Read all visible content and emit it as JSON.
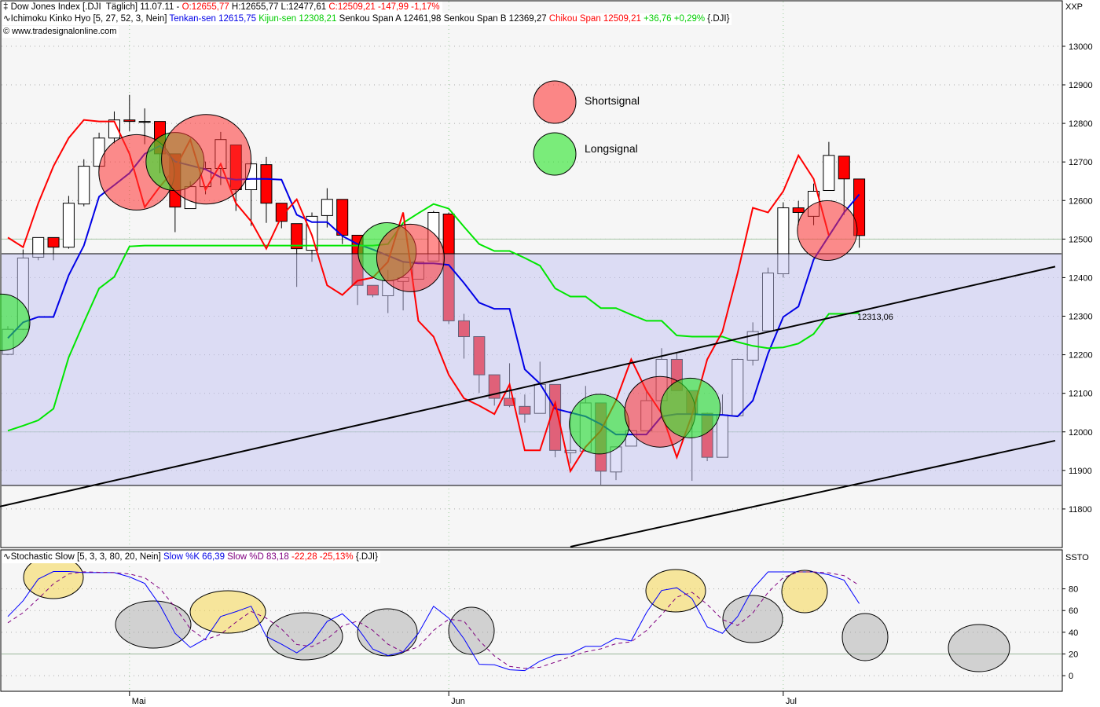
{
  "header": {
    "instrument": {
      "icon": "candlestick-icon",
      "title": "Dow Jones Index [.DJI  Täglich] 11.07.11 - ",
      "open": "O:12655,77",
      "hl": " H:12655,77 L:12477,61 ",
      "close": "C:12509,21 -147,99 -1,17%"
    },
    "ichimoku": {
      "icon": "indicator-wave-icon",
      "name": "Ichimoku Kinko Hyo [5, 27, 52, 3, Nein] ",
      "tenkan": "Tenkan-sen 12615,75 ",
      "kijun": "Kijun-sen 12308,21 ",
      "senkou": "Senkou Span A 12461,98 Senkou Span B 12369,27 ",
      "chikou": "Chikou Span 12509,21 ",
      "change": "+36,76 +0,29% ",
      "symbol": "{.DJI}"
    },
    "copyright": "© www.tradesignalonline.com"
  },
  "stoch_header": {
    "icon": "indicator-wave-icon",
    "name": "Stochastic Slow [5, 3, 3, 80, 20, Nein] ",
    "k": "Slow %K 66,39 ",
    "d": "Slow %D 83,18 ",
    "change": "-22,28 -25,13% ",
    "symbol": "{.DJI}"
  },
  "main_axis_label": "XXP",
  "stoch_axis_label": "SSTO",
  "legend": {
    "short": "Shortsignal",
    "long": "Longsignal"
  },
  "trendline_label": "12313,06",
  "colors": {
    "background": "#f6f6f6",
    "up_candle": "#ffffff",
    "down_candle": "#ff0000",
    "tenkan": "#0000e6",
    "kijun": "#00e600",
    "chikou": "#ff0000",
    "band": "#c1c1f1",
    "short_signal": "#ff4040",
    "long_signal": "#33dd33",
    "stoch_k": "#0000ff",
    "stoch_d": "#800080",
    "stoch_high": "#f5d750",
    "stoch_low": "#a0a0a0"
  },
  "chart_data": [
    {
      "type": "candlestick",
      "title": "Dow Jones Index [.DJI  Täglich]",
      "y_range": [
        11700,
        13118
      ],
      "y_ticks": [
        13000,
        12900,
        12800,
        12700,
        12600,
        12500,
        12400,
        12300,
        12200,
        12100,
        12000,
        11900,
        11800
      ],
      "x_ticks": [
        {
          "date": "2011-05-02",
          "label": "Mai"
        },
        {
          "date": "2011-06-01",
          "label": "Jun"
        },
        {
          "date": "2011-07-01",
          "label": "Jul"
        }
      ],
      "grid": true,
      "columns": [
        "date",
        "open",
        "high",
        "low",
        "close"
      ],
      "candles": [
        [
          "2011-04-19",
          12201,
          12274,
          12199,
          12266
        ],
        [
          "2011-04-20",
          12266,
          12473,
          12264,
          12451
        ],
        [
          "2011-04-21",
          12453,
          12504,
          12445,
          12504
        ],
        [
          "2011-04-25",
          12504,
          12504,
          12445,
          12479
        ],
        [
          "2011-04-26",
          12479,
          12612,
          12475,
          12593
        ],
        [
          "2011-04-27",
          12591,
          12707,
          12585,
          12689
        ],
        [
          "2011-04-28",
          12689,
          12776,
          12681,
          12762
        ],
        [
          "2011-04-29",
          12762,
          12831,
          12748,
          12809
        ],
        [
          "2011-05-02",
          12809,
          12874,
          12780,
          12805
        ],
        [
          "2011-05-03",
          12805,
          12839,
          12746,
          12805
        ],
        [
          "2011-05-04",
          12805,
          12805,
          12671,
          12721
        ],
        [
          "2011-05-05",
          12721,
          12721,
          12518,
          12583
        ],
        [
          "2011-05-06",
          12579,
          12650,
          12579,
          12636
        ],
        [
          "2011-05-09",
          12636,
          12701,
          12616,
          12683
        ],
        [
          "2011-05-10",
          12683,
          12778,
          12640,
          12758
        ],
        [
          "2011-05-11",
          12744,
          12744,
          12573,
          12628
        ],
        [
          "2011-05-12",
          12628,
          12700,
          12534,
          12695
        ],
        [
          "2011-05-13",
          12693,
          12713,
          12542,
          12593
        ],
        [
          "2011-05-16",
          12593,
          12593,
          12528,
          12546
        ],
        [
          "2011-05-17",
          12540,
          12540,
          12376,
          12475
        ],
        [
          "2011-05-18",
          12471,
          12569,
          12441,
          12559
        ],
        [
          "2011-05-19",
          12561,
          12632,
          12530,
          12603
        ],
        [
          "2011-05-20",
          12603,
          12603,
          12487,
          12510
        ],
        [
          "2011-05-23",
          12510,
          12510,
          12329,
          12380
        ],
        [
          "2011-05-24",
          12380,
          12380,
          12349,
          12355
        ],
        [
          "2011-05-25",
          12353,
          12420,
          12308,
          12392
        ],
        [
          "2011-05-26",
          12390,
          12441,
          12315,
          12400
        ],
        [
          "2011-05-27",
          12396,
          12441,
          12396,
          12441
        ],
        [
          "2011-05-31",
          12443,
          12573,
          12443,
          12569
        ],
        [
          "2011-06-01",
          12565,
          12569,
          12280,
          12288
        ],
        [
          "2011-06-02",
          12288,
          12306,
          12190,
          12247
        ],
        [
          "2011-06-03",
          12247,
          12247,
          12101,
          12148
        ],
        [
          "2011-06-06",
          12148,
          12148,
          12068,
          12087
        ],
        [
          "2011-06-07",
          12087,
          12178,
          12064,
          12068
        ],
        [
          "2011-06-08",
          12066,
          12097,
          12024,
          12046
        ],
        [
          "2011-06-09",
          12048,
          12182,
          12048,
          12123
        ],
        [
          "2011-06-10",
          12123,
          12123,
          11934,
          11952
        ],
        [
          "2011-06-13",
          11946,
          12054,
          11918,
          11952
        ],
        [
          "2011-06-14",
          11950,
          12119,
          11950,
          12075
        ],
        [
          "2011-06-15",
          12075,
          12075,
          11863,
          11898
        ],
        [
          "2011-06-16",
          11896,
          11961,
          11875,
          11961
        ],
        [
          "2011-06-17",
          11963,
          12003,
          11963,
          12003
        ],
        [
          "2011-06-20",
          12003,
          12105,
          12003,
          12081
        ],
        [
          "2011-06-21",
          12081,
          12217,
          12081,
          12188
        ],
        [
          "2011-06-22",
          12188,
          12203,
          12107,
          12107
        ],
        [
          "2011-06-23",
          12107,
          12107,
          11873,
          12048
        ],
        [
          "2011-06-24",
          12048,
          12050,
          11924,
          11934
        ],
        [
          "2011-06-27",
          11934,
          12097,
          11934,
          12044
        ],
        [
          "2011-06-28",
          12042,
          12190,
          12042,
          12188
        ],
        [
          "2011-06-29",
          12186,
          12284,
          12172,
          12260
        ],
        [
          "2011-06-30",
          12262,
          12426,
          12262,
          12412
        ],
        [
          "2011-07-01",
          12410,
          12595,
          12400,
          12581
        ],
        [
          "2011-07-05",
          12581,
          12599,
          12536,
          12569
        ],
        [
          "2011-07-06",
          12559,
          12644,
          12536,
          12624
        ],
        [
          "2011-07-07",
          12626,
          12752,
          12626,
          12717
        ],
        [
          "2011-07-08",
          12715,
          12715,
          12563,
          12656
        ],
        [
          "2011-07-11",
          12655.77,
          12655.77,
          12477.61,
          12509.21
        ]
      ],
      "series": [
        {
          "name": "Tenkan-sen",
          "color": "#0000e6",
          "values": [
            12243,
            12284,
            12298,
            12298,
            12406,
            12483,
            12610,
            12640,
            12671,
            12721,
            12742,
            12701,
            12691,
            12681,
            12660,
            12654,
            12656,
            12656,
            12654,
            12563,
            12544,
            12544,
            12508,
            12487,
            12473,
            12457,
            12441,
            12437,
            12437,
            12433,
            12386,
            12335,
            12319,
            12319,
            12162,
            12125,
            12060,
            12050,
            12040,
            12020,
            11993,
            11993,
            11993,
            12040,
            12046,
            12046,
            12044,
            12044,
            12040,
            12081,
            12203,
            12298,
            12325,
            12447,
            12508,
            12569,
            12615.75
          ]
        },
        {
          "name": "Kijun-sen",
          "color": "#00e600",
          "values": [
            12003,
            12016,
            12030,
            12060,
            12193,
            12284,
            12372,
            12402,
            12481,
            12483,
            12483,
            12483,
            12483,
            12483,
            12483,
            12483,
            12483,
            12483,
            12483,
            12483,
            12483,
            12483,
            12483,
            12483,
            12483,
            12487,
            12542,
            12567,
            12591,
            12579,
            12532,
            12487,
            12469,
            12469,
            12451,
            12431,
            12372,
            12351,
            12351,
            12321,
            12321,
            12304,
            12288,
            12288,
            12250,
            12247,
            12247,
            12247,
            12233,
            12223,
            12217,
            12219,
            12229,
            12254,
            12306,
            12306,
            12308.21
          ]
        },
        {
          "name": "Chikou Span",
          "color": "#ff0000",
          "values": [
            12504,
            12479,
            12593,
            12689,
            12762,
            12809,
            12805,
            12805,
            12721,
            12583,
            12636,
            12683,
            12758,
            12628,
            12695,
            12593,
            12546,
            12475,
            12559,
            12603,
            12510,
            12380,
            12355,
            12392,
            12400,
            12441,
            12569,
            12288,
            12247,
            12148,
            12087,
            12068,
            12046,
            12123,
            11952,
            11952,
            12075,
            11898,
            11961,
            12003,
            12081,
            12188,
            12107,
            12048,
            11934,
            12044,
            12188,
            12260,
            12412,
            12581,
            12569,
            12624,
            12717,
            12656,
            12509.21
          ]
        }
      ],
      "band": {
        "upper": 12461.98,
        "lower": 11861
      },
      "horizontal_lines": [
        12500,
        12000
      ],
      "trendlines": [
        {
          "from": [
            "2011-04-19",
            11811
          ],
          "to": [
            "2011-07-11",
            12313.06
          ]
        },
        {
          "from": [
            "2011-06-13",
            11702
          ],
          "to": [
            "2011-07-11",
            11866
          ]
        }
      ],
      "signals": [
        {
          "type": "long",
          "date": "2011-04-19",
          "price": 12284
        },
        {
          "type": "short",
          "date": "2011-05-02",
          "price": 12673
        },
        {
          "type": "long",
          "date": "2011-05-05",
          "price": 12701
        },
        {
          "type": "short",
          "date": "2011-05-09",
          "price": 12707
        },
        {
          "type": "long",
          "date": "2011-05-25",
          "price": 12467
        },
        {
          "type": "short",
          "date": "2011-05-27",
          "price": 12451
        },
        {
          "type": "long",
          "date": "2011-06-15",
          "price": 12020
        },
        {
          "type": "short",
          "date": "2011-06-21",
          "price": 12052
        },
        {
          "type": "long",
          "date": "2011-06-23",
          "price": 12062
        },
        {
          "type": "short",
          "date": "2011-07-07",
          "price": 12522
        }
      ]
    },
    {
      "type": "line",
      "title": "Stochastic Slow [5, 3, 3, 80, 20, Nein]",
      "y_range": [
        -14.4,
        115.9
      ],
      "y_ticks": [
        80,
        60,
        40,
        20,
        0
      ],
      "series": [
        {
          "name": "Slow %K",
          "color": "#0000ff",
          "values": [
            54.5,
            69,
            89,
            96,
            96,
            95,
            95,
            95,
            91,
            85,
            65,
            39,
            26,
            34,
            54.5,
            59,
            64,
            36,
            29,
            21,
            30.5,
            50,
            57,
            44,
            24.5,
            18.5,
            22,
            39,
            64,
            53,
            34,
            10.5,
            10,
            5.4,
            4.7,
            13.4,
            19,
            20,
            27,
            27,
            34.6,
            32,
            58,
            78.5,
            81,
            71,
            45,
            39,
            54.5,
            80,
            95.6,
            95.6,
            95.6,
            95.6,
            93,
            88,
            66.39
          ]
        },
        {
          "name": "Slow %D",
          "color": "#800080",
          "values": [
            48.7,
            58,
            70.8,
            84.7,
            93.7,
            95.7,
            95.3,
            95,
            93.7,
            90.3,
            80.3,
            63,
            43.3,
            33,
            38.2,
            49.2,
            59.2,
            53,
            43,
            28.7,
            26.8,
            33.8,
            45.8,
            50.3,
            41.8,
            29,
            21.7,
            26.5,
            41.7,
            52,
            50.3,
            32.5,
            18.2,
            8.6,
            6.7,
            7.8,
            12.4,
            17.5,
            22,
            24.7,
            29.5,
            31.2,
            41.5,
            56.2,
            72.5,
            76.8,
            65.7,
            51.7,
            46.2,
            57.8,
            76.7,
            90.4,
            95.6,
            95.6,
            94.7,
            92.2,
            83.18
          ]
        }
      ],
      "horizontal_lines": [
        20
      ]
    }
  ]
}
